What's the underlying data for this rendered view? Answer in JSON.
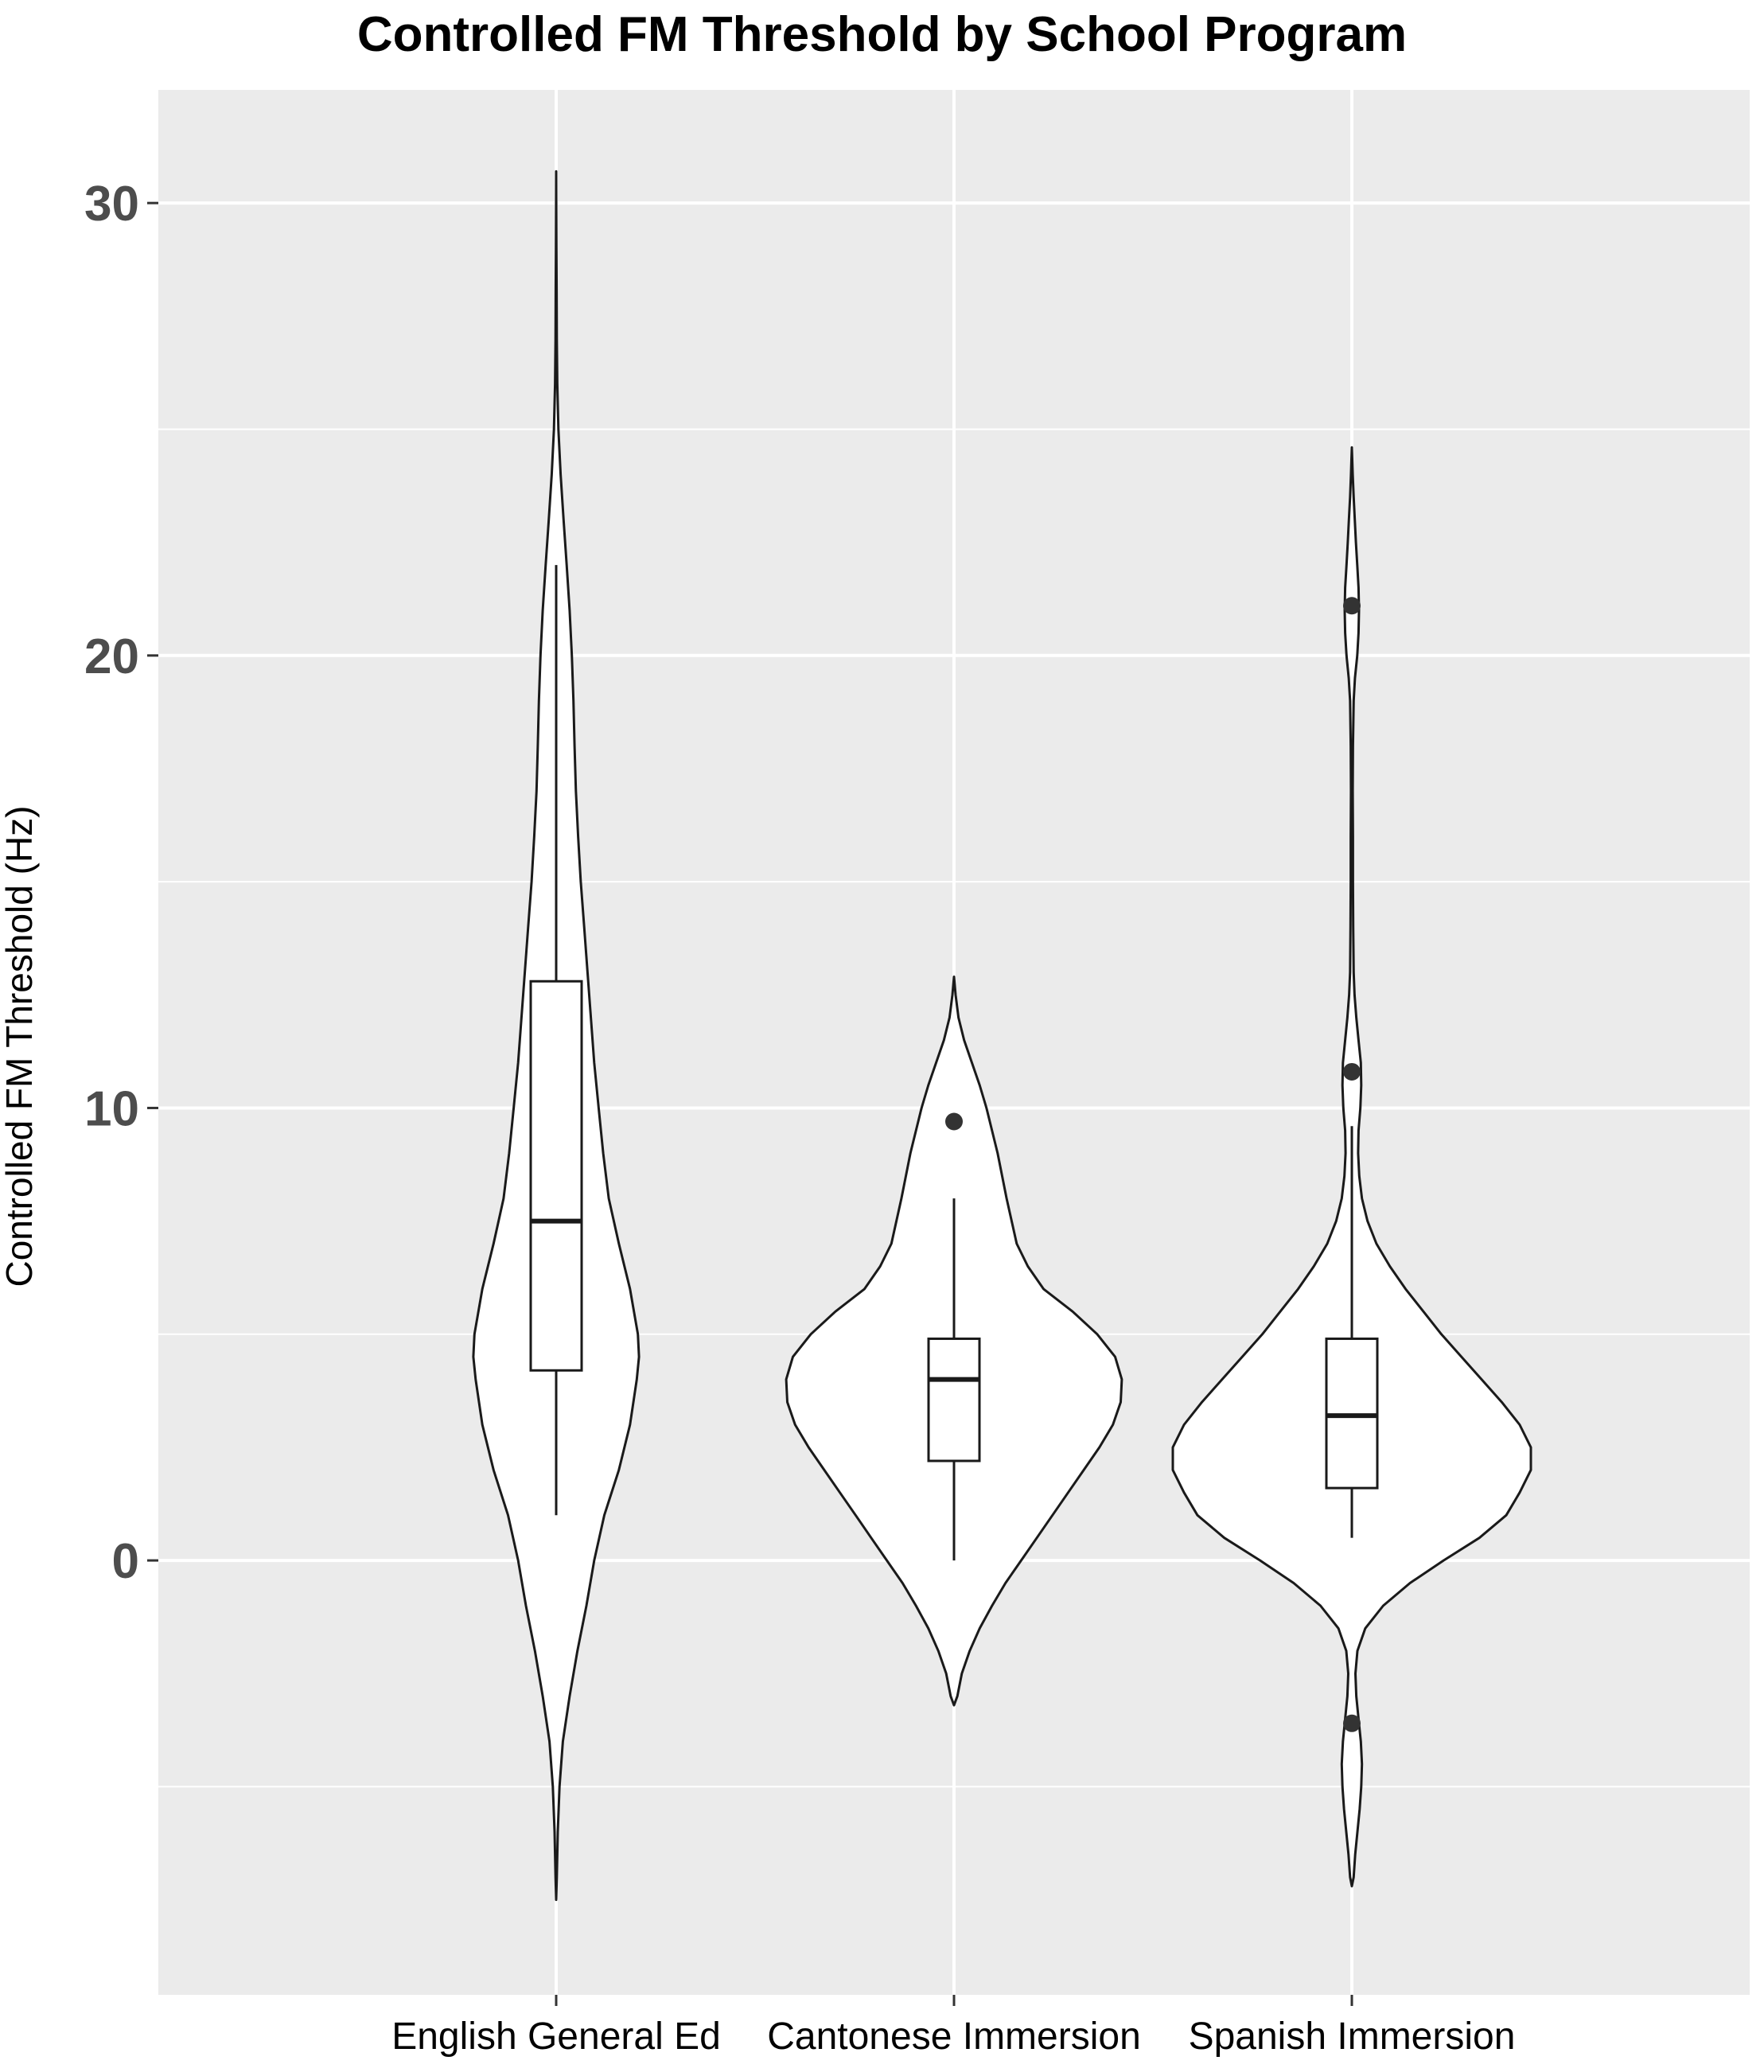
{
  "chart_data": {
    "type": "violin",
    "title": "Controlled FM Threshold by School Program",
    "xlabel": "",
    "ylabel": "Controlled FM Threshold (Hz)",
    "ylim": [
      -9.6,
      32.5
    ],
    "yticks": [
      0,
      10,
      20,
      30
    ],
    "grid": true,
    "legend": "none",
    "categories": [
      "English General Ed",
      "Cantonese Immersion",
      "Spanish Immersion"
    ],
    "violins": [
      {
        "name": "English General Ed",
        "density": [
          [
            -7.5,
            0.0
          ],
          [
            -7.0,
            0.003
          ],
          [
            -6.0,
            0.007
          ],
          [
            -5.0,
            0.015
          ],
          [
            -4.0,
            0.03
          ],
          [
            -3.0,
            0.06
          ],
          [
            -2.0,
            0.095
          ],
          [
            -1.0,
            0.135
          ],
          [
            0.0,
            0.17
          ],
          [
            1.0,
            0.215
          ],
          [
            2.0,
            0.28
          ],
          [
            3.0,
            0.33
          ],
          [
            4.0,
            0.36
          ],
          [
            4.5,
            0.37
          ],
          [
            5.0,
            0.365
          ],
          [
            6.0,
            0.33
          ],
          [
            7.0,
            0.28
          ],
          [
            8.0,
            0.235
          ],
          [
            9.0,
            0.21
          ],
          [
            10.0,
            0.19
          ],
          [
            11.0,
            0.17
          ],
          [
            12.0,
            0.155
          ],
          [
            13.0,
            0.14
          ],
          [
            14.0,
            0.125
          ],
          [
            15.0,
            0.11
          ],
          [
            16.0,
            0.098
          ],
          [
            17.0,
            0.088
          ],
          [
            18.0,
            0.082
          ],
          [
            19.0,
            0.077
          ],
          [
            20.0,
            0.07
          ],
          [
            21.0,
            0.06
          ],
          [
            22.0,
            0.047
          ],
          [
            23.0,
            0.033
          ],
          [
            24.0,
            0.02
          ],
          [
            25.0,
            0.01
          ],
          [
            26.0,
            0.005
          ],
          [
            27.0,
            0.003
          ],
          [
            28.0,
            0.002
          ],
          [
            29.0,
            0.001
          ],
          [
            30.0,
            0.0005
          ],
          [
            30.7,
            0.0
          ]
        ],
        "box": {
          "q1": 4.2,
          "median": 7.5,
          "q3": 12.8,
          "whisker_low": 1.0,
          "whisker_high": 22.0
        },
        "outliers": []
      },
      {
        "name": "Cantonese Immersion",
        "density": [
          [
            -3.2,
            0.0
          ],
          [
            -3.0,
            0.015
          ],
          [
            -2.5,
            0.035
          ],
          [
            -2.0,
            0.07
          ],
          [
            -1.5,
            0.115
          ],
          [
            -1.0,
            0.17
          ],
          [
            -0.5,
            0.23
          ],
          [
            0.0,
            0.3
          ],
          [
            0.5,
            0.37
          ],
          [
            1.0,
            0.44
          ],
          [
            1.5,
            0.51
          ],
          [
            2.0,
            0.58
          ],
          [
            2.5,
            0.65
          ],
          [
            3.0,
            0.71
          ],
          [
            3.5,
            0.745
          ],
          [
            4.0,
            0.75
          ],
          [
            4.5,
            0.72
          ],
          [
            5.0,
            0.64
          ],
          [
            5.5,
            0.53
          ],
          [
            6.0,
            0.4
          ],
          [
            6.5,
            0.33
          ],
          [
            7.0,
            0.28
          ],
          [
            8.0,
            0.235
          ],
          [
            9.0,
            0.195
          ],
          [
            10.0,
            0.145
          ],
          [
            10.5,
            0.115
          ],
          [
            11.0,
            0.08
          ],
          [
            11.5,
            0.045
          ],
          [
            12.0,
            0.02
          ],
          [
            12.5,
            0.007
          ],
          [
            12.9,
            0.0
          ]
        ],
        "box": {
          "q1": 2.2,
          "median": 4.0,
          "q3": 4.9,
          "whisker_low": 0.0,
          "whisker_high": 8.0
        },
        "outliers": [
          9.7
        ]
      },
      {
        "name": "Spanish Immersion",
        "density": [
          [
            -7.2,
            0.0
          ],
          [
            -7.0,
            0.008
          ],
          [
            -6.5,
            0.015
          ],
          [
            -6.0,
            0.025
          ],
          [
            -5.5,
            0.035
          ],
          [
            -5.0,
            0.042
          ],
          [
            -4.5,
            0.045
          ],
          [
            -4.0,
            0.04
          ],
          [
            -3.5,
            0.03
          ],
          [
            -3.0,
            0.02
          ],
          [
            -2.5,
            0.016
          ],
          [
            -2.0,
            0.025
          ],
          [
            -1.5,
            0.06
          ],
          [
            -1.0,
            0.14
          ],
          [
            -0.5,
            0.26
          ],
          [
            0.0,
            0.41
          ],
          [
            0.5,
            0.57
          ],
          [
            1.0,
            0.69
          ],
          [
            1.5,
            0.75
          ],
          [
            2.0,
            0.8
          ],
          [
            2.5,
            0.8
          ],
          [
            3.0,
            0.75
          ],
          [
            3.5,
            0.67
          ],
          [
            4.0,
            0.58
          ],
          [
            4.5,
            0.49
          ],
          [
            5.0,
            0.4
          ],
          [
            5.5,
            0.32
          ],
          [
            6.0,
            0.24
          ],
          [
            6.5,
            0.17
          ],
          [
            7.0,
            0.11
          ],
          [
            7.5,
            0.07
          ],
          [
            8.0,
            0.045
          ],
          [
            8.5,
            0.033
          ],
          [
            9.0,
            0.028
          ],
          [
            9.5,
            0.03
          ],
          [
            10.0,
            0.038
          ],
          [
            10.5,
            0.042
          ],
          [
            11.0,
            0.04
          ],
          [
            11.5,
            0.03
          ],
          [
            12.0,
            0.02
          ],
          [
            12.5,
            0.012
          ],
          [
            13.0,
            0.008
          ],
          [
            14.0,
            0.006
          ],
          [
            15.0,
            0.005
          ],
          [
            16.0,
            0.005
          ],
          [
            17.0,
            0.004
          ],
          [
            18.0,
            0.005
          ],
          [
            19.0,
            0.008
          ],
          [
            19.5,
            0.014
          ],
          [
            20.0,
            0.024
          ],
          [
            20.5,
            0.03
          ],
          [
            21.0,
            0.032
          ],
          [
            21.5,
            0.03
          ],
          [
            22.0,
            0.024
          ],
          [
            22.5,
            0.018
          ],
          [
            23.0,
            0.013
          ],
          [
            23.5,
            0.008
          ],
          [
            24.0,
            0.004
          ],
          [
            24.6,
            0.0
          ]
        ],
        "box": {
          "q1": 1.6,
          "median": 3.2,
          "q3": 4.9,
          "whisker_low": 0.5,
          "whisker_high": 9.6
        },
        "outliers": [
          21.1,
          10.8,
          -3.6
        ]
      }
    ]
  },
  "colors": {
    "panel_background": "#ebebeb",
    "gridline": "#ffffff",
    "violin_fill": "#ffffff",
    "outline": "#1a1a1a",
    "tick_text": "#4d4d4d",
    "point": "#333333"
  }
}
